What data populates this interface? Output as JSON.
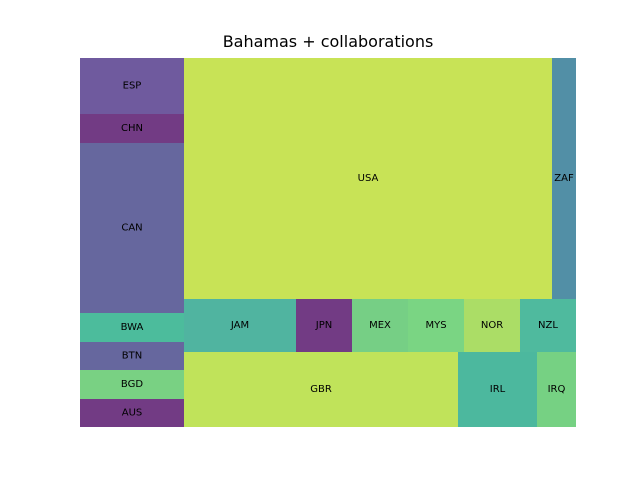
{
  "chart_data": {
    "type": "treemap",
    "title": "Bahamas + collaborations",
    "xlabel": "",
    "ylabel": "",
    "grid": false,
    "legend": "none",
    "cells": [
      {
        "label": "ESP",
        "color": "#6f5a9e"
      },
      {
        "label": "CHN",
        "color": "#723b84"
      },
      {
        "label": "CAN",
        "color": "#66679e"
      },
      {
        "label": "BWA",
        "color": "#4cbc9c"
      },
      {
        "label": "BTN",
        "color": "#66679e"
      },
      {
        "label": "BGD",
        "color": "#79d183"
      },
      {
        "label": "AUS",
        "color": "#723b84"
      },
      {
        "label": "USA",
        "color": "#c8e356"
      },
      {
        "label": "ZAF",
        "color": "#528fa6"
      },
      {
        "label": "JAM",
        "color": "#50b4a0"
      },
      {
        "label": "JPN",
        "color": "#723b84"
      },
      {
        "label": "MEX",
        "color": "#76cf85"
      },
      {
        "label": "MYS",
        "color": "#7ad583"
      },
      {
        "label": "NOR",
        "color": "#abdd66"
      },
      {
        "label": "NZL",
        "color": "#4fba9e"
      },
      {
        "label": "GBR",
        "color": "#c0e35a"
      },
      {
        "label": "IRL",
        "color": "#4cb89e"
      },
      {
        "label": "IRQ",
        "color": "#76d183"
      }
    ]
  }
}
